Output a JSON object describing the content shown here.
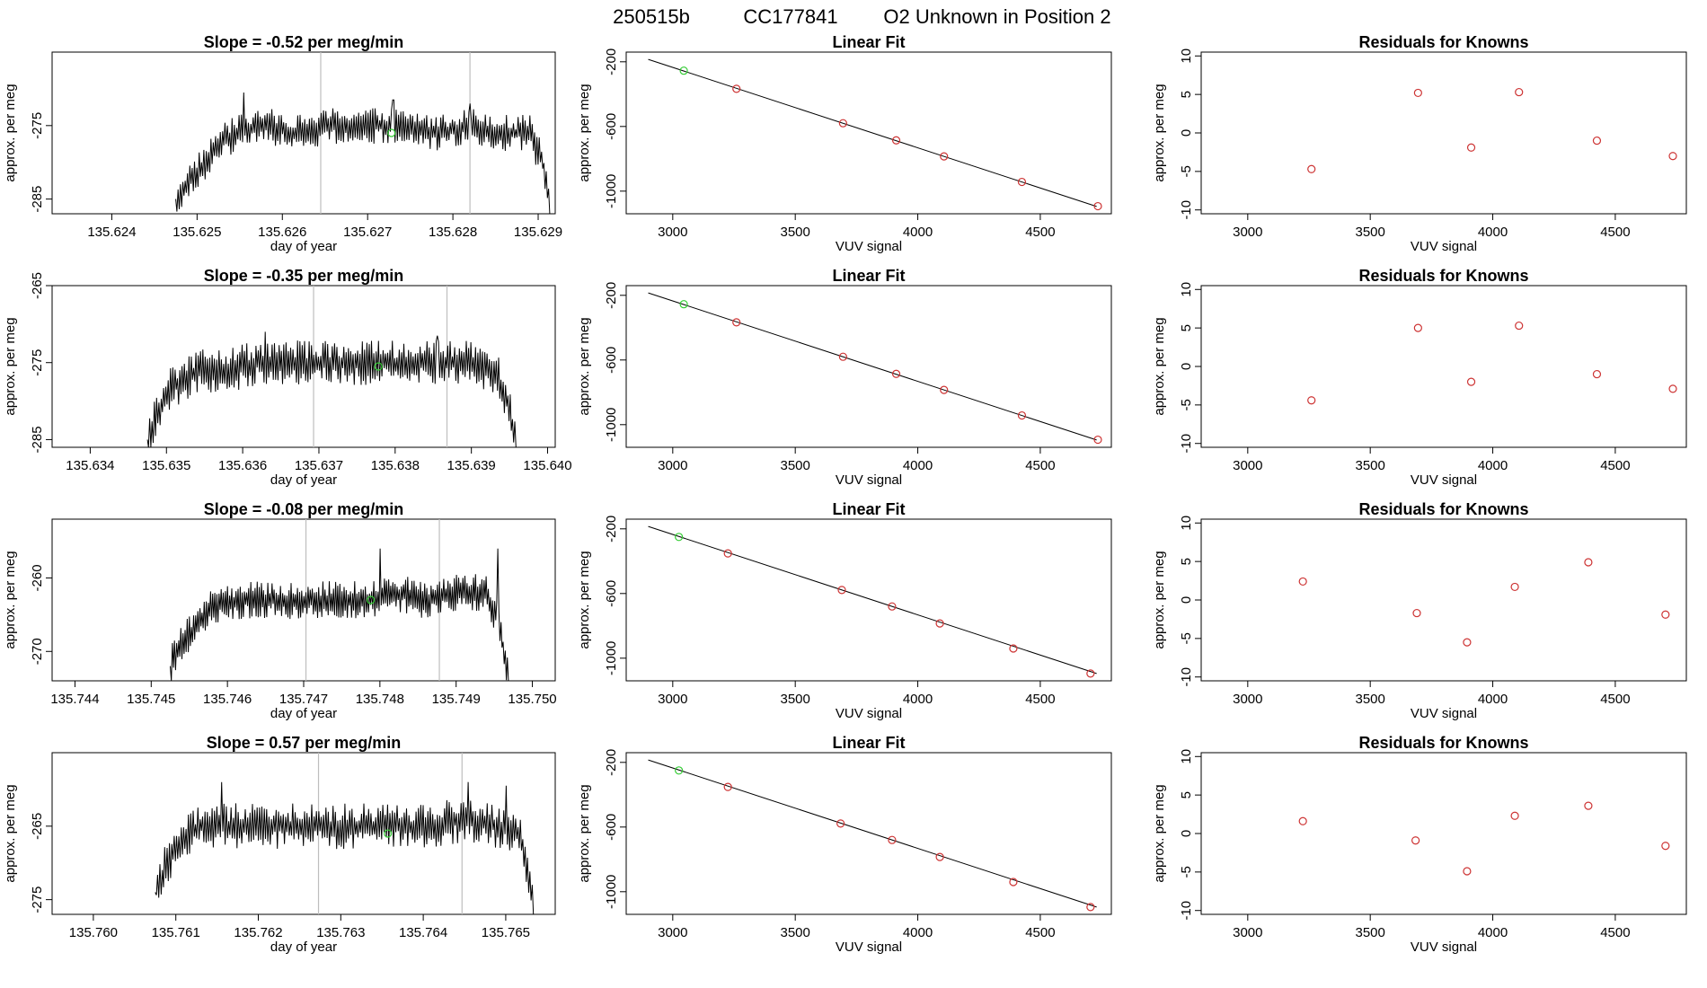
{
  "page": {
    "run_id": "250515b",
    "cylinder": "CC177841",
    "description": "O2 Unknown in Position  2"
  },
  "colors": {
    "line": "#000000",
    "known_point": "#cd3333",
    "unknown_point": "#33cc33",
    "vertical_marker": "#bebebe"
  },
  "chart_data": [
    {
      "type": "line",
      "row": 0,
      "panel": "timeseries",
      "title": "Slope =  -0.52  per meg/min",
      "xlabel": "day of year",
      "ylabel": "approx. per meg",
      "xlim": [
        135.6233,
        135.6292
      ],
      "ylim": [
        -287,
        -265
      ],
      "xticks": [
        135.624,
        135.625,
        135.626,
        135.627,
        135.628,
        135.629
      ],
      "xtick_labels": [
        "135.624",
        "135.625",
        "135.626",
        "135.627",
        "135.628",
        "135.629"
      ],
      "yticks": [
        -285,
        -275
      ],
      "ytick_labels": [
        "-285",
        "-275"
      ],
      "vlines": [
        135.62645,
        135.6282
      ],
      "series": [
        {
          "x": [
            135.6233,
            135.62475
          ],
          "y": [
            -287,
            -287
          ]
        },
        {
          "x": [
            135.62475,
            135.62495,
            135.6251,
            135.6253,
            135.6255,
            135.6258,
            135.6262,
            135.6266,
            135.627,
            135.6274,
            135.6278,
            135.6282,
            135.6286,
            135.6289,
            135.62905,
            135.62915
          ],
          "y": [
            -285,
            -282,
            -280,
            -277,
            -276,
            -275,
            -276,
            -275,
            -275,
            -275,
            -276,
            -275,
            -276,
            -276,
            -280,
            -287
          ],
          "amplitude": 2.2,
          "spikes": [
            [
              135.62555,
              -270.5
            ],
            [
              135.6273,
              -271.5
            ],
            [
              135.6282,
              -272
            ]
          ]
        }
      ],
      "unknown_marker": {
        "x": 135.62728,
        "y": -276
      }
    },
    {
      "type": "scatter",
      "row": 0,
      "panel": "linear_fit",
      "title": "Linear Fit",
      "xlabel": "VUV signal",
      "ylabel": "approx. per meg",
      "xlim": [
        2810,
        4790
      ],
      "ylim": [
        -1140,
        -140
      ],
      "xticks": [
        3000,
        3500,
        4000,
        4500
      ],
      "xtick_labels": [
        "3000",
        "3500",
        "4000",
        "4500"
      ],
      "yticks": [
        -1000,
        -600,
        -200
      ],
      "ytick_labels": [
        "-1000",
        "-600",
        "-200"
      ],
      "fit_line": {
        "x": [
          2900,
          4730
        ],
        "y": [
          -185,
          -1095
        ]
      },
      "known_points": {
        "x": [
          3260,
          3695,
          3912,
          4107,
          4425,
          4735
        ],
        "y": [
          -367,
          -580,
          -686,
          -785,
          -943,
          -1093
        ]
      },
      "unknown_points": {
        "x": [
          3045
        ],
        "y": [
          -255
        ]
      }
    },
    {
      "type": "scatter",
      "row": 0,
      "panel": "residuals",
      "title": "Residuals for Knowns",
      "xlabel": "VUV signal",
      "ylabel": "approx. per meg",
      "xlim": [
        2810,
        4790
      ],
      "ylim": [
        -10.5,
        10.5
      ],
      "xticks": [
        3000,
        3500,
        4000,
        4500
      ],
      "xtick_labels": [
        "3000",
        "3500",
        "4000",
        "4500"
      ],
      "yticks": [
        -10,
        -5,
        0,
        5,
        10
      ],
      "ytick_labels": [
        "-10",
        "-5",
        "0",
        "5",
        "10"
      ],
      "known_points": {
        "x": [
          3260,
          3695,
          3912,
          4107,
          4425,
          4735
        ],
        "y": [
          -4.7,
          5.2,
          -1.9,
          5.3,
          -1.0,
          -3.0
        ]
      }
    },
    {
      "type": "line",
      "row": 1,
      "panel": "timeseries",
      "title": "Slope =  -0.35  per meg/min",
      "xlabel": "day of year",
      "ylabel": "approx. per meg",
      "xlim": [
        135.6335,
        135.6401
      ],
      "ylim": [
        -286,
        -265
      ],
      "xticks": [
        135.634,
        135.635,
        135.636,
        135.637,
        135.638,
        135.639,
        135.64
      ],
      "xtick_labels": [
        "135.634",
        "135.635",
        "135.636",
        "135.637",
        "135.638",
        "135.639",
        "135.640"
      ],
      "yticks": [
        -285,
        -275,
        -265
      ],
      "ytick_labels": [
        "-285",
        "-275",
        "-265"
      ],
      "vlines": [
        135.63693,
        135.63868
      ],
      "series": [
        {
          "x": [
            135.6335,
            135.63475
          ],
          "y": [
            -286,
            -286
          ]
        },
        {
          "x": [
            135.63475,
            135.63495,
            135.6351,
            135.6354,
            135.6358,
            135.6362,
            135.6366,
            135.637,
            135.6374,
            135.6378,
            135.6382,
            135.6386,
            135.639,
            135.6393,
            135.63948,
            135.6396
          ],
          "y": [
            -285,
            -280,
            -278,
            -276,
            -276,
            -275,
            -275,
            -275,
            -275,
            -275,
            -275,
            -275,
            -275,
            -276,
            -280,
            -286
          ],
          "amplitude": 2.6,
          "spikes": [
            [
              135.6363,
              -271
            ],
            [
              135.6372,
              -272.5
            ],
            [
              135.63855,
              -271.5
            ]
          ]
        }
      ],
      "unknown_marker": {
        "x": 135.63778,
        "y": -275.5
      }
    },
    {
      "type": "scatter",
      "row": 1,
      "panel": "linear_fit",
      "title": "Linear Fit",
      "xlabel": "VUV signal",
      "ylabel": "approx. per meg",
      "xlim": [
        2810,
        4790
      ],
      "ylim": [
        -1140,
        -140
      ],
      "xticks": [
        3000,
        3500,
        4000,
        4500
      ],
      "xtick_labels": [
        "3000",
        "3500",
        "4000",
        "4500"
      ],
      "yticks": [
        -1000,
        -600,
        -200
      ],
      "ytick_labels": [
        "-1000",
        "-600",
        "-200"
      ],
      "fit_line": {
        "x": [
          2900,
          4730
        ],
        "y": [
          -185,
          -1095
        ]
      },
      "known_points": {
        "x": [
          3260,
          3695,
          3912,
          4107,
          4425,
          4735
        ],
        "y": [
          -367,
          -580,
          -686,
          -785,
          -943,
          -1093
        ]
      },
      "unknown_points": {
        "x": [
          3045
        ],
        "y": [
          -255
        ]
      }
    },
    {
      "type": "scatter",
      "row": 1,
      "panel": "residuals",
      "title": "Residuals for Knowns",
      "xlabel": "VUV signal",
      "ylabel": "approx. per meg",
      "xlim": [
        2810,
        4790
      ],
      "ylim": [
        -10.5,
        10.5
      ],
      "xticks": [
        3000,
        3500,
        4000,
        4500
      ],
      "xtick_labels": [
        "3000",
        "3500",
        "4000",
        "4500"
      ],
      "yticks": [
        -10,
        -5,
        0,
        5,
        10
      ],
      "ytick_labels": [
        "-10",
        "-5",
        "0",
        "5",
        "10"
      ],
      "known_points": {
        "x": [
          3260,
          3695,
          3912,
          4107,
          4425,
          4735
        ],
        "y": [
          -4.4,
          5.0,
          -2.0,
          5.3,
          -1.0,
          -2.9
        ]
      }
    },
    {
      "type": "line",
      "row": 2,
      "panel": "timeseries",
      "title": "Slope =  -0.08  per meg/min",
      "xlabel": "day of year",
      "ylabel": "approx. per meg",
      "xlim": [
        135.7437,
        135.7503
      ],
      "ylim": [
        -274,
        -252
      ],
      "xticks": [
        135.744,
        135.745,
        135.746,
        135.747,
        135.748,
        135.749,
        135.75
      ],
      "xtick_labels": [
        "135.744",
        "135.745",
        "135.746",
        "135.747",
        "135.748",
        "135.749",
        "135.750"
      ],
      "yticks": [
        -270,
        -260
      ],
      "ytick_labels": [
        "-270",
        "-260"
      ],
      "vlines": [
        135.74703,
        135.74878
      ],
      "series": [
        {
          "x": [
            135.7437,
            135.74525
          ],
          "y": [
            -274,
            -274
          ]
        },
        {
          "x": [
            135.74525,
            135.7454,
            135.74555,
            135.7458,
            135.7462,
            135.7466,
            135.747,
            135.7474,
            135.7478,
            135.7482,
            135.7486,
            135.749,
            135.7494,
            135.74955,
            135.7497
          ],
          "y": [
            -272,
            -269,
            -267,
            -264,
            -263,
            -263,
            -263,
            -263,
            -263,
            -262,
            -263,
            -262,
            -262,
            -266,
            -274
          ],
          "amplitude": 2.3,
          "spikes": [
            [
              135.748,
              -256
            ],
            [
              135.74955,
              -256
            ]
          ]
        }
      ],
      "unknown_marker": {
        "x": 135.74788,
        "y": -263
      }
    },
    {
      "type": "scatter",
      "row": 2,
      "panel": "linear_fit",
      "title": "Linear Fit",
      "xlabel": "VUV signal",
      "ylabel": "approx. per meg",
      "xlim": [
        2810,
        4790
      ],
      "ylim": [
        -1140,
        -140
      ],
      "xticks": [
        3000,
        3500,
        4000,
        4500
      ],
      "xtick_labels": [
        "3000",
        "3500",
        "4000",
        "4500"
      ],
      "yticks": [
        -1000,
        -600,
        -200
      ],
      "ytick_labels": [
        "-1000",
        "-600",
        "-200"
      ],
      "fit_line": {
        "x": [
          2900,
          4730
        ],
        "y": [
          -185,
          -1095
        ]
      },
      "known_points": {
        "x": [
          3225,
          3690,
          3895,
          4090,
          4390,
          4705
        ],
        "y": [
          -352,
          -578,
          -680,
          -785,
          -940,
          -1095
        ]
      },
      "unknown_points": {
        "x": [
          3025
        ],
        "y": [
          -250
        ]
      }
    },
    {
      "type": "scatter",
      "row": 2,
      "panel": "residuals",
      "title": "Residuals for Knowns",
      "xlabel": "VUV signal",
      "ylabel": "approx. per meg",
      "xlim": [
        2810,
        4790
      ],
      "ylim": [
        -10.5,
        10.5
      ],
      "xticks": [
        3000,
        3500,
        4000,
        4500
      ],
      "xtick_labels": [
        "3000",
        "3500",
        "4000",
        "4500"
      ],
      "yticks": [
        -10,
        -5,
        0,
        5,
        10
      ],
      "ytick_labels": [
        "-10",
        "-5",
        "0",
        "5",
        "10"
      ],
      "known_points": {
        "x": [
          3225,
          3690,
          3895,
          4090,
          4390,
          4705
        ],
        "y": [
          2.4,
          -1.7,
          -5.5,
          1.7,
          4.9,
          -1.9
        ]
      }
    },
    {
      "type": "line",
      "row": 3,
      "panel": "timeseries",
      "title": "Slope =  0.57  per meg/min",
      "xlabel": "day of year",
      "ylabel": "approx. per meg",
      "xlim": [
        135.7595,
        135.7656
      ],
      "ylim": [
        -277,
        -255
      ],
      "xticks": [
        135.76,
        135.761,
        135.762,
        135.763,
        135.764,
        135.765
      ],
      "xtick_labels": [
        "135.760",
        "135.761",
        "135.762",
        "135.763",
        "135.764",
        "135.765"
      ],
      "yticks": [
        -275,
        -265
      ],
      "ytick_labels": [
        "-275",
        "-265"
      ],
      "vlines": [
        135.76273,
        135.76447
      ],
      "series": [
        {
          "x": [
            135.7595,
            135.76075
          ],
          "y": [
            -277,
            -277
          ]
        },
        {
          "x": [
            135.76075,
            135.7609,
            135.76105,
            135.7613,
            135.7617,
            135.7621,
            135.7625,
            135.7629,
            135.7633,
            135.7637,
            135.7641,
            135.7645,
            135.7649,
            135.76518,
            135.76535
          ],
          "y": [
            -274,
            -270,
            -267,
            -265,
            -265,
            -265,
            -265,
            -265,
            -265,
            -265,
            -265,
            -264,
            -265,
            -266,
            -277
          ],
          "amplitude": 2.8,
          "spikes": [
            [
              135.76155,
              -259
            ],
            [
              135.76455,
              -259
            ],
            [
              135.765,
              -259.5
            ]
          ]
        }
      ],
      "unknown_marker": {
        "x": 135.76357,
        "y": -266
      }
    },
    {
      "type": "scatter",
      "row": 3,
      "panel": "linear_fit",
      "title": "Linear Fit",
      "xlabel": "VUV signal",
      "ylabel": "approx. per meg",
      "xlim": [
        2810,
        4790
      ],
      "ylim": [
        -1140,
        -140
      ],
      "xticks": [
        3000,
        3500,
        4000,
        4500
      ],
      "xtick_labels": [
        "3000",
        "3500",
        "4000",
        "4500"
      ],
      "yticks": [
        -1000,
        -600,
        -200
      ],
      "ytick_labels": [
        "-1000",
        "-600",
        "-200"
      ],
      "fit_line": {
        "x": [
          2900,
          4730
        ],
        "y": [
          -185,
          -1095
        ]
      },
      "known_points": {
        "x": [
          3225,
          3685,
          3895,
          4090,
          4390,
          4705
        ],
        "y": [
          -352,
          -578,
          -680,
          -785,
          -940,
          -1095
        ]
      },
      "unknown_points": {
        "x": [
          3025
        ],
        "y": [
          -250
        ]
      }
    },
    {
      "type": "scatter",
      "row": 3,
      "panel": "residuals",
      "title": "Residuals for Knowns",
      "xlabel": "VUV signal",
      "ylabel": "approx. per meg",
      "xlim": [
        2810,
        4790
      ],
      "ylim": [
        -10.5,
        10.5
      ],
      "xticks": [
        3000,
        3500,
        4000,
        4500
      ],
      "xtick_labels": [
        "3000",
        "3500",
        "4000",
        "4500"
      ],
      "yticks": [
        -10,
        -5,
        0,
        5,
        10
      ],
      "ytick_labels": [
        "-10",
        "-5",
        "0",
        "5",
        "10"
      ],
      "known_points": {
        "x": [
          3225,
          3685,
          3895,
          4090,
          4390,
          4705
        ],
        "y": [
          1.6,
          -0.9,
          -4.9,
          2.3,
          3.6,
          -1.6
        ]
      }
    }
  ]
}
